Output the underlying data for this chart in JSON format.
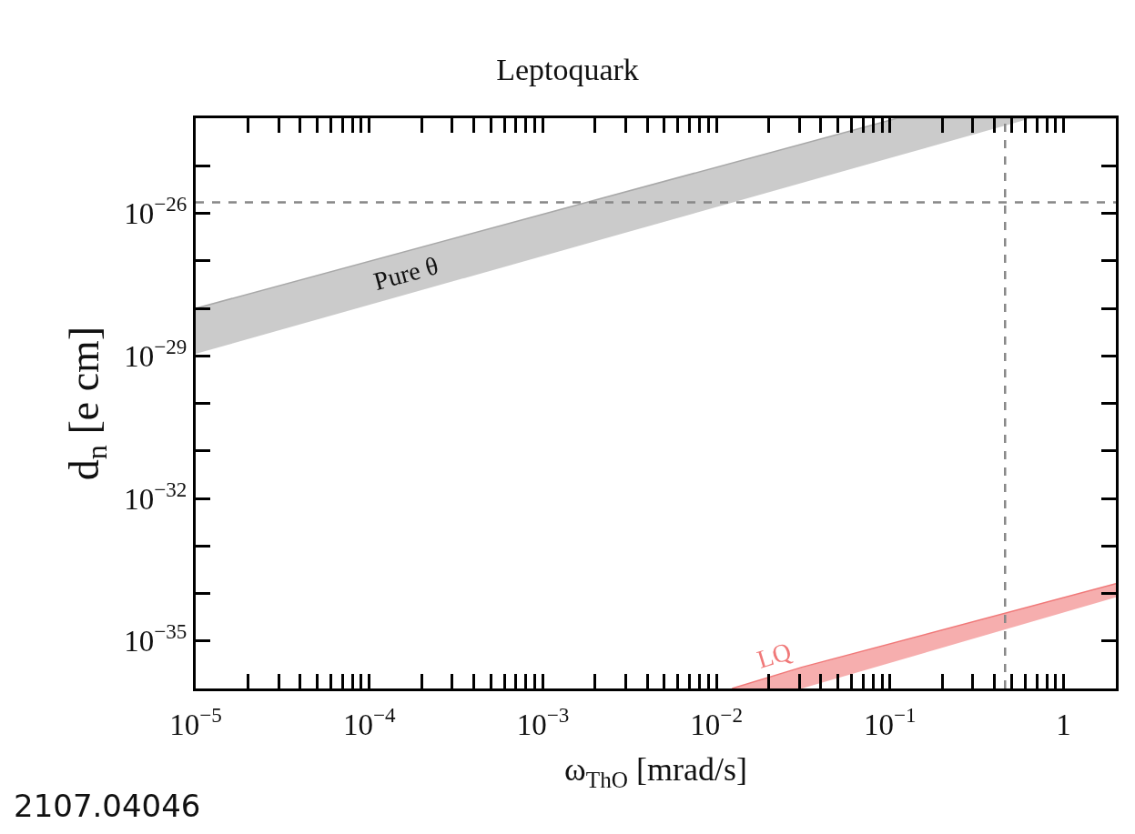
{
  "chart_data": {
    "type": "line",
    "title": "Leptoquark",
    "xlabel": "ω$_{ThO}$ [mrad/s]",
    "ylabel": "d$_{n}$ [e cm]",
    "log": "xy",
    "grid": false,
    "legend": false,
    "xlim": [
      1e-05,
      2
    ],
    "xticks": [
      {
        "value": 1e-05,
        "label": "10$^{−5}$"
      },
      {
        "value": 2e-05,
        "label": null
      },
      {
        "value": 3e-05,
        "label": null
      },
      {
        "value": 4e-05,
        "label": null
      },
      {
        "value": 5e-05,
        "label": null
      },
      {
        "value": 6e-05,
        "label": null
      },
      {
        "value": 7e-05,
        "label": null
      },
      {
        "value": 8e-05,
        "label": null
      },
      {
        "value": 9e-05,
        "label": null
      },
      {
        "value": 0.0001,
        "label": "10$^{−4}$"
      },
      {
        "value": 0.0002,
        "label": null
      },
      {
        "value": 0.0003,
        "label": null
      },
      {
        "value": 0.0004,
        "label": null
      },
      {
        "value": 0.0005,
        "label": null
      },
      {
        "value": 0.0006,
        "label": null
      },
      {
        "value": 0.0007,
        "label": null
      },
      {
        "value": 0.0008,
        "label": null
      },
      {
        "value": 0.0009,
        "label": null
      },
      {
        "value": 0.001,
        "label": "10$^{−3}$"
      },
      {
        "value": 0.002,
        "label": null
      },
      {
        "value": 0.003,
        "label": null
      },
      {
        "value": 0.004,
        "label": null
      },
      {
        "value": 0.005,
        "label": null
      },
      {
        "value": 0.006,
        "label": null
      },
      {
        "value": 0.007,
        "label": null
      },
      {
        "value": 0.008,
        "label": null
      },
      {
        "value": 0.009,
        "label": null
      },
      {
        "value": 0.01,
        "label": "10$^{−2}$"
      },
      {
        "value": 0.02,
        "label": null
      },
      {
        "value": 0.03,
        "label": null
      },
      {
        "value": 0.04,
        "label": null
      },
      {
        "value": 0.05,
        "label": null
      },
      {
        "value": 0.06,
        "label": null
      },
      {
        "value": 0.07,
        "label": null
      },
      {
        "value": 0.08,
        "label": null
      },
      {
        "value": 0.09,
        "label": null
      },
      {
        "value": 0.1,
        "label": "10$^{−1}$"
      },
      {
        "value": 0.2,
        "label": null
      },
      {
        "value": 0.3,
        "label": null
      },
      {
        "value": 0.4,
        "label": null
      },
      {
        "value": 0.5,
        "label": null
      },
      {
        "value": 0.6,
        "label": null
      },
      {
        "value": 0.7,
        "label": null
      },
      {
        "value": 0.8,
        "label": null
      },
      {
        "value": 0.9,
        "label": null
      },
      {
        "value": 1,
        "label": "1"
      },
      {
        "value": 2,
        "label": null
      }
    ],
    "ylim": [
      1e-36,
      1e-24
    ],
    "yticks": [
      {
        "value": 1e-36,
        "label": null
      },
      {
        "value": 1e-35,
        "label": "10$^{−35}$"
      },
      {
        "value": 1e-34,
        "label": null
      },
      {
        "value": 1e-33,
        "label": null
      },
      {
        "value": 1e-32,
        "label": "10$^{−32}$"
      },
      {
        "value": 1e-31,
        "label": null
      },
      {
        "value": 1e-30,
        "label": null
      },
      {
        "value": 1e-29,
        "label": "10$^{−29}$"
      },
      {
        "value": 1e-28,
        "label": null
      },
      {
        "value": 1e-27,
        "label": null
      },
      {
        "value": 1e-26,
        "label": "10$^{−26}$"
      },
      {
        "value": 1e-25,
        "label": null
      },
      {
        "value": 1e-24,
        "label": null
      }
    ],
    "series": [
      {
        "name": "Pure θ",
        "color": "#a8a8a8",
        "x": [
          1e-05,
          0.11,
          0.65,
          2
        ],
        "values": [
          1e-28,
          1e-24,
          1e-24,
          1e-24
        ],
        "lower": [
          1.1e-29,
          1.6e-25,
          1e-24,
          1e-24
        ],
        "upper": [
          1e-28,
          1e-24,
          1e-24,
          1e-24
        ]
      },
      {
        "name": "LQ",
        "color": "#f07878",
        "x": [
          0.0123,
          0.031,
          2
        ],
        "values": [
          1e-36,
          2.8e-36,
          1.6e-34
        ],
        "lower": [
          1e-36,
          1e-36,
          8.3e-35
        ],
        "upper": [
          1e-36,
          2.8e-36,
          1.6e-34
        ]
      }
    ],
    "ref_lines": [
      {
        "axis": "y",
        "value": 1.7e-26,
        "color": "#888888",
        "line_style": "dashed"
      },
      {
        "axis": "x",
        "value": 0.46,
        "color": "#888888",
        "line_style": "dashed"
      }
    ],
    "annotations": [
      "2107.04046"
    ]
  }
}
